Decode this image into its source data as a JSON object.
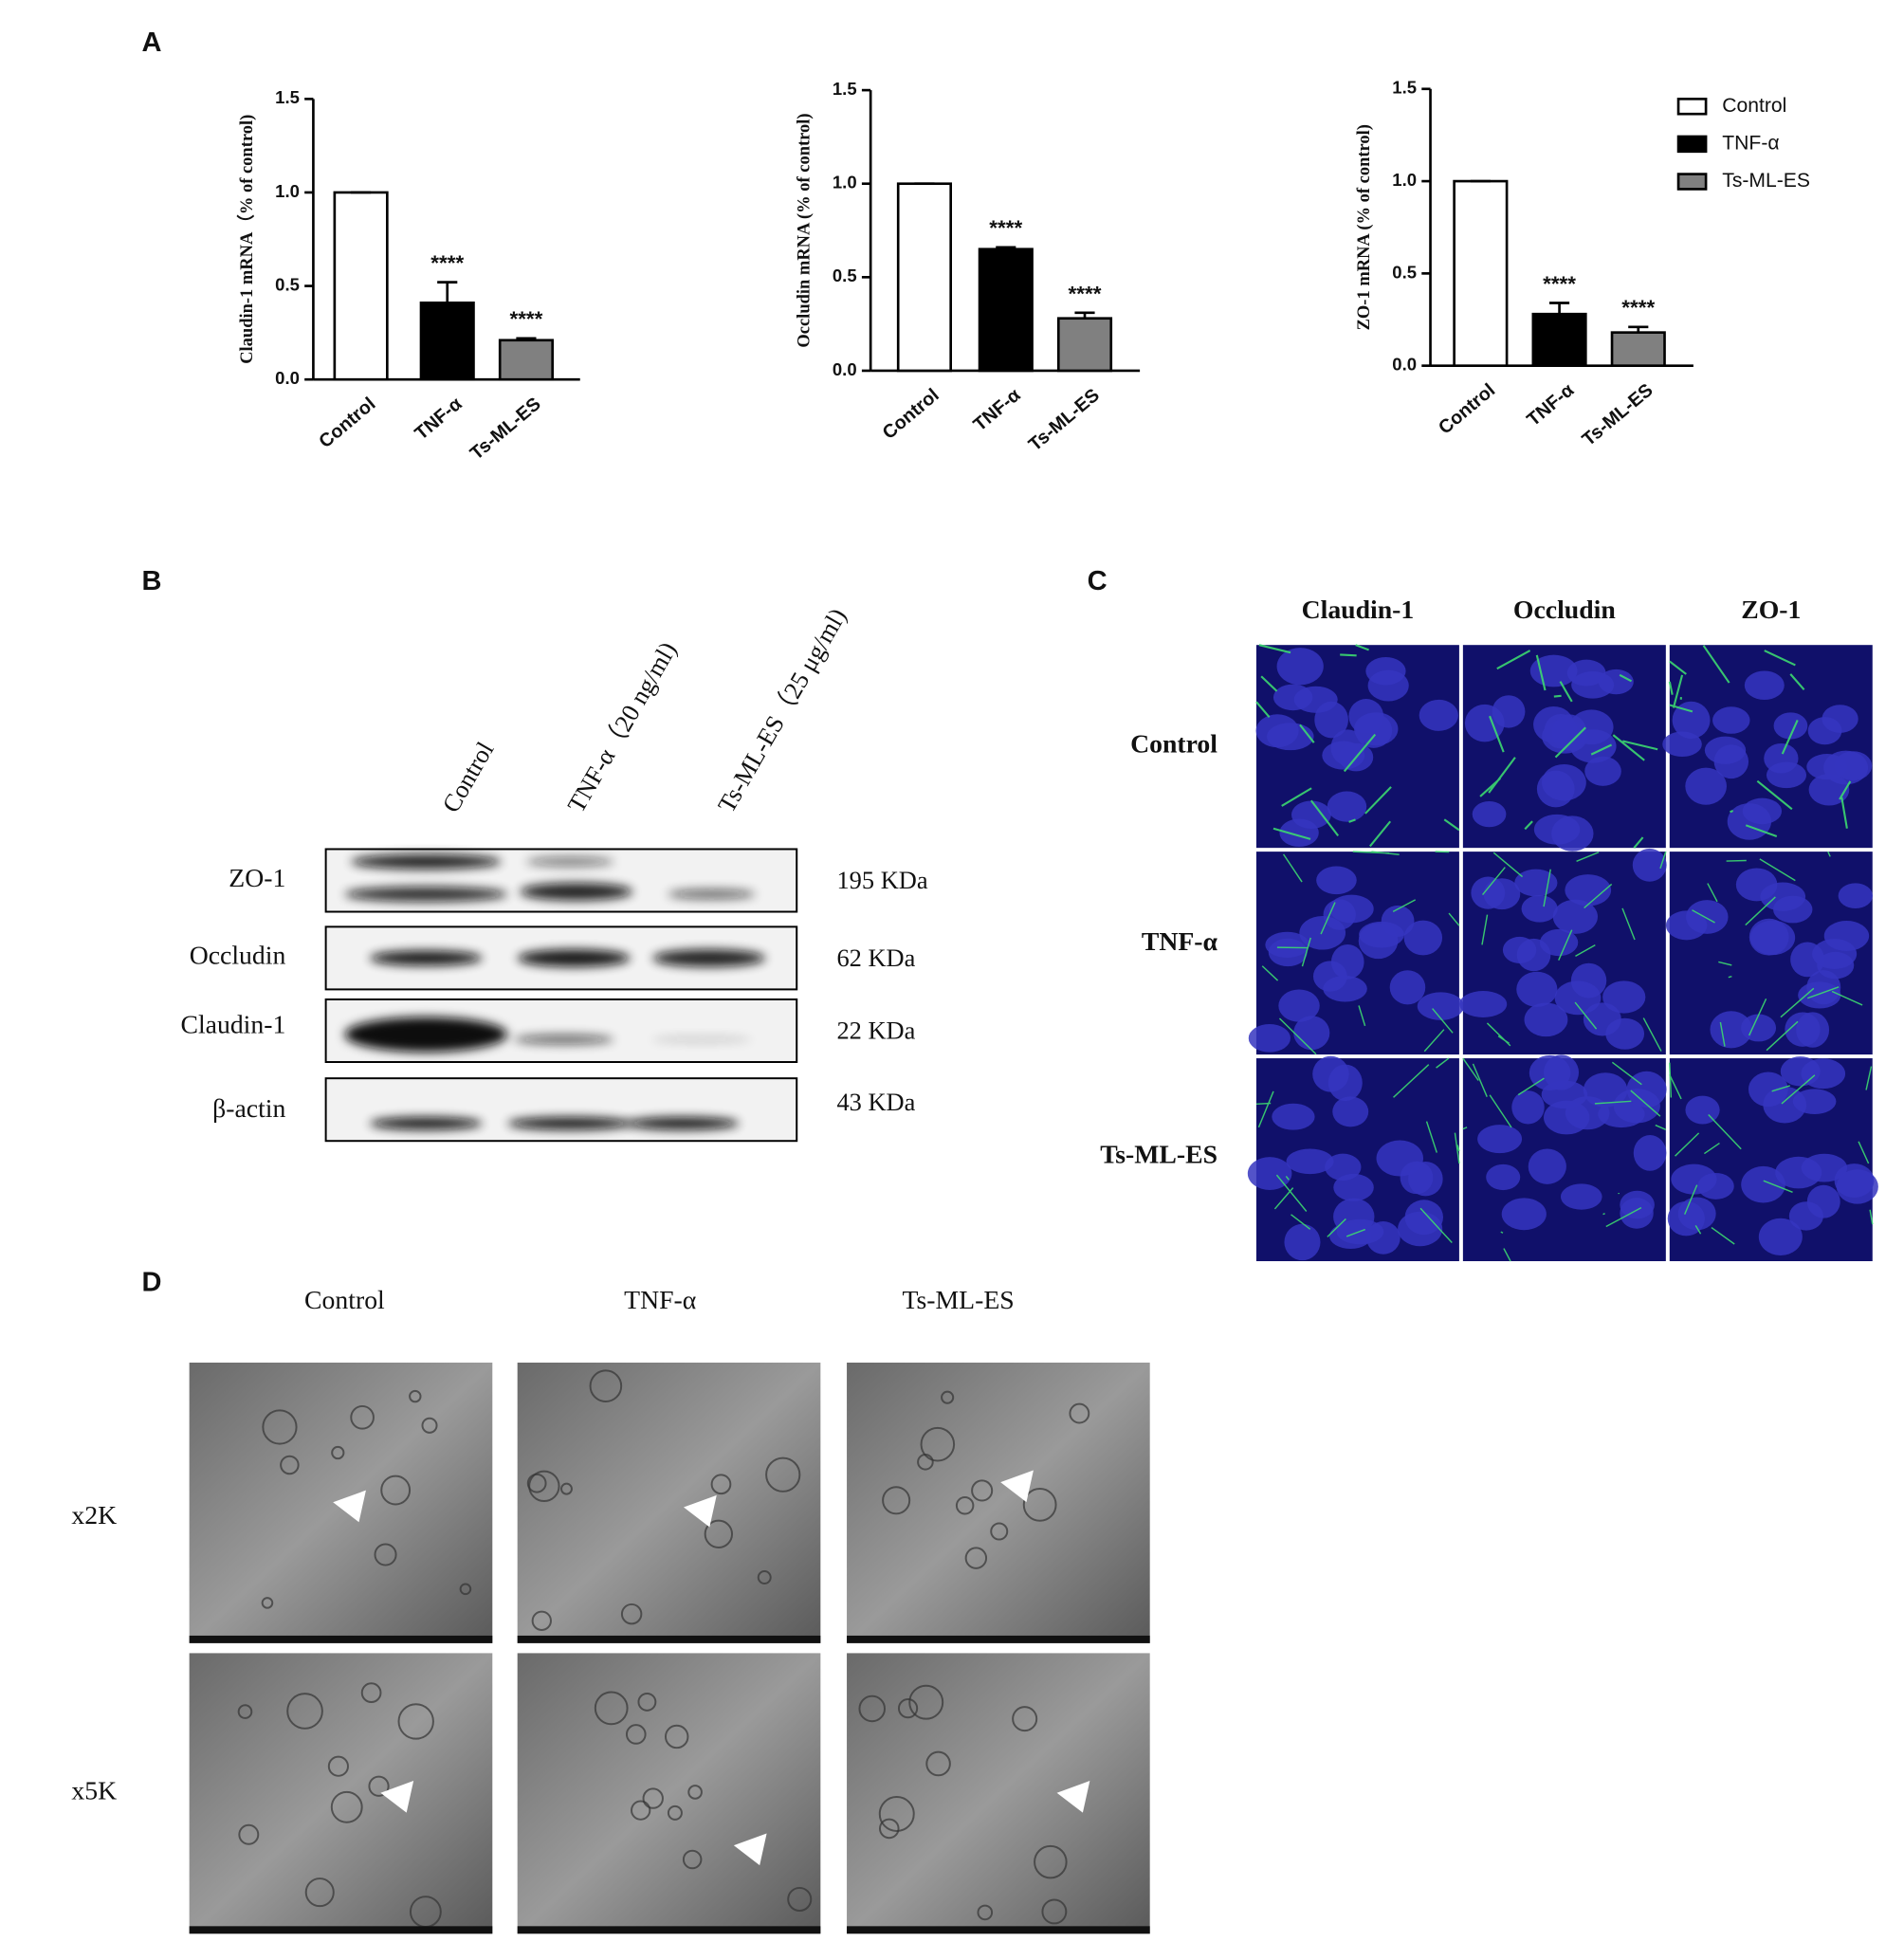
{
  "chart_data": [
    {
      "type": "bar",
      "y_label": "Claudin-1 mRNA（% of control)",
      "categories": [
        "Control",
        "TNF-α",
        "Ts-ML-ES"
      ],
      "values": [
        1.0,
        0.41,
        0.21
      ],
      "errors": [
        0,
        0.11,
        0.01
      ],
      "annotations": [
        null,
        "****",
        "****"
      ],
      "colors": [
        "#ffffff",
        "#000000",
        "#808080"
      ],
      "ylim": [
        0,
        1.5
      ],
      "yticks": [
        {
          "value": 0,
          "label": "0.0"
        },
        0.5,
        {
          "value": 1,
          "label": "1.0"
        },
        1.5
      ],
      "legend": false
    },
    {
      "type": "bar",
      "y_label": "Occludin mRNA (% of control)",
      "categories": [
        "Control",
        "TNF-α",
        "Ts-ML-ES"
      ],
      "values": [
        1.0,
        0.65,
        0.28
      ],
      "errors": [
        0,
        0.01,
        0.03
      ],
      "annotations": [
        null,
        "****",
        "****"
      ],
      "colors": [
        "#ffffff",
        "#000000",
        "#808080"
      ],
      "ylim": [
        0,
        1.5
      ],
      "yticks": [
        {
          "value": 0,
          "label": "0.0"
        },
        0.5,
        {
          "value": 1,
          "label": "1.0"
        },
        1.5
      ],
      "legend": false
    },
    {
      "type": "bar",
      "y_label": "ZO-1 mRNA (% of control)",
      "categories": [
        "Control",
        "TNF-α",
        "Ts-ML-ES"
      ],
      "values": [
        1.0,
        0.28,
        0.18
      ],
      "errors": [
        0,
        0.06,
        0.03
      ],
      "annotations": [
        null,
        "****",
        "****"
      ],
      "colors": [
        "#ffffff",
        "#000000",
        "#808080"
      ],
      "ylim": [
        0,
        1.5
      ],
      "yticks": [
        {
          "value": 0,
          "label": "0.0"
        },
        0.5,
        {
          "value": 1,
          "label": "1.0"
        },
        1.5
      ],
      "legend": true
    }
  ],
  "panel_labels": [
    "A",
    "B",
    "C",
    "D"
  ],
  "western_blot": {
    "lanes": [
      "Control",
      "TNF-α（20 ng/ml)",
      "Ts-ML-ES（25 μg/ml)"
    ],
    "rows": [
      {
        "name": "ZO-1",
        "size": "195 KDa"
      },
      {
        "name": "Occludin",
        "size": "62 KDa"
      },
      {
        "name": "Claudin-1",
        "size": "22 KDa"
      },
      {
        "name": "β-actin",
        "size": "43 KDa"
      }
    ]
  },
  "immunofluorescence": {
    "columns": [
      "Claudin-1",
      "Occludin",
      "ZO-1"
    ],
    "rows": [
      "Control",
      "TNF-α",
      "Ts-ML-ES"
    ]
  },
  "tem": {
    "columns": [
      "Control",
      "TNF-α",
      "Ts-ML-ES"
    ],
    "rows": [
      "x2K",
      "x5K"
    ]
  }
}
